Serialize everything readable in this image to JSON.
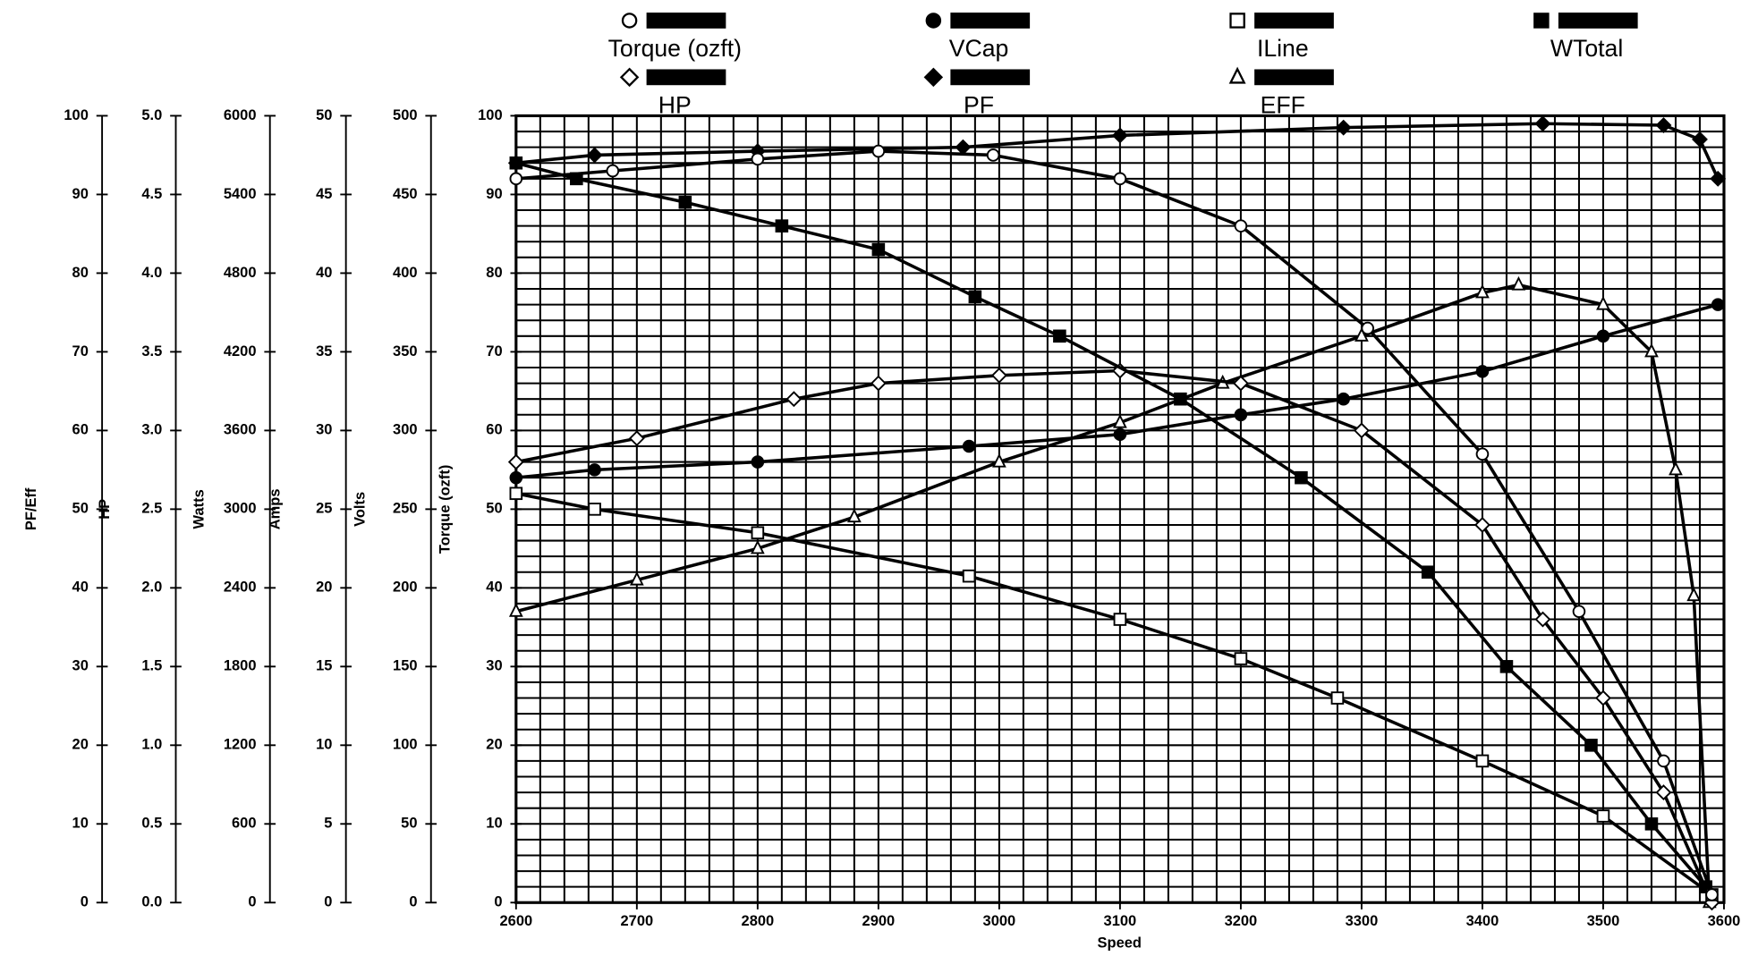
{
  "chart_data": {
    "type": "line",
    "xlabel": "Speed",
    "xlim": [
      2600,
      3600
    ],
    "xticks": [
      2600,
      2700,
      2800,
      2900,
      3000,
      3100,
      3200,
      3300,
      3400,
      3500,
      3600
    ],
    "grid": true,
    "x_minor_step": 20,
    "y_minor_step": 2,
    "y_axes": [
      {
        "label": "PF/Eff",
        "ylim": [
          0,
          100
        ],
        "yticks": [
          0,
          10,
          20,
          30,
          40,
          50,
          60,
          70,
          80,
          90,
          100
        ],
        "series": [
          {
            "name": "PF",
            "color": "#000",
            "marker": "diamond",
            "filled": true,
            "x": [
              2600,
              2665,
              2800,
              2970,
              3100,
              3285,
              3450,
              3550,
              3580,
              3595
            ],
            "values": [
              94,
              95,
              95.5,
              96,
              97.5,
              98.5,
              99,
              98.8,
              97,
              92
            ]
          },
          {
            "name": "EFF",
            "color": "#000",
            "marker": "triangle",
            "filled": false,
            "x": [
              2600,
              2700,
              2800,
              2880,
              3000,
              3100,
              3185,
              3300,
              3400,
              3430,
              3500,
              3540,
              3560,
              3575,
              3588
            ],
            "values": [
              37,
              41,
              45,
              49,
              56,
              61,
              66,
              72,
              77.5,
              78.5,
              76,
              70,
              55,
              39,
              0
            ]
          }
        ]
      },
      {
        "label": "HP",
        "ylim": [
          0,
          5
        ],
        "yticks": [
          {
            "value": 0,
            "label": "0.0"
          },
          0.5,
          {
            "value": 1,
            "label": "1.0"
          },
          1.5,
          {
            "value": 2,
            "label": "2.0"
          },
          2.5,
          {
            "value": 3,
            "label": "3.0"
          },
          3.5,
          {
            "value": 4,
            "label": "4.0"
          },
          4.5,
          {
            "value": 5,
            "label": "5.0"
          }
        ],
        "series": [
          {
            "name": "HP",
            "color": "#000",
            "marker": "diamond",
            "filled": false,
            "x": [
              2600,
              2700,
              2830,
              2900,
              3000,
              3100,
              3200,
              3300,
              3400,
              3450,
              3500,
              3550,
              3590
            ],
            "values": [
              2.8,
              2.95,
              3.2,
              3.3,
              3.35,
              3.38,
              3.3,
              3.0,
              2.4,
              1.8,
              1.3,
              0.7,
              0
            ]
          }
        ]
      },
      {
        "label": "Watts",
        "ylim": [
          0,
          6000
        ],
        "yticks": [
          0,
          600,
          1200,
          1800,
          2400,
          3000,
          3600,
          4200,
          4800,
          5400,
          6000
        ],
        "series": [
          {
            "name": "WTotal",
            "color": "#000",
            "marker": "square",
            "filled": true,
            "x": [
              2600,
              2650,
              2740,
              2820,
              2900,
              2980,
              3050,
              3150,
              3250,
              3355,
              3420,
              3490,
              3540,
              3585
            ],
            "values": [
              5640,
              5520,
              5340,
              5160,
              4980,
              4620,
              4320,
              3840,
              3240,
              2520,
              1800,
              1200,
              600,
              120
            ]
          }
        ]
      },
      {
        "label": "Amps",
        "ylim": [
          0,
          50
        ],
        "yticks": [
          0,
          5,
          10,
          15,
          20,
          25,
          30,
          35,
          40,
          45,
          50
        ],
        "series": [
          {
            "name": "ILine",
            "color": "#000",
            "marker": "square",
            "filled": false,
            "x": [
              2600,
              2665,
              2800,
              2975,
              3100,
              3200,
              3280,
              3400,
              3500,
              3590
            ],
            "values": [
              26,
              25,
              23.5,
              20.75,
              18,
              15.5,
              13,
              9,
              5.5,
              0.5
            ]
          }
        ]
      },
      {
        "label": "Volts",
        "ylim": [
          0,
          500
        ],
        "yticks": [
          0,
          50,
          100,
          150,
          200,
          250,
          300,
          350,
          400,
          450,
          500
        ],
        "series": [
          {
            "name": "VCap",
            "color": "#000",
            "marker": "circle",
            "filled": true,
            "x": [
              2600,
              2665,
              2800,
              2975,
              3100,
              3200,
              3285,
              3400,
              3500,
              3595
            ],
            "values": [
              270,
              275,
              280,
              290,
              297.5,
              310,
              320,
              337.5,
              360,
              380
            ]
          }
        ]
      },
      {
        "label": "Torque (ozft)",
        "ylim": [
          0,
          100
        ],
        "yticks": [
          0,
          10,
          20,
          30,
          40,
          50,
          60,
          70,
          80,
          90,
          100
        ],
        "series": [
          {
            "name": "Torque (ozft)",
            "color": "#000",
            "marker": "circle",
            "filled": false,
            "x": [
              2600,
              2680,
              2800,
              2900,
              2995,
              3100,
              3200,
              3305,
              3400,
              3480,
              3550,
              3590
            ],
            "values": [
              92,
              93,
              94.5,
              95.5,
              95,
              92,
              86,
              73,
              57,
              37,
              18,
              1
            ]
          }
        ]
      }
    ]
  }
}
